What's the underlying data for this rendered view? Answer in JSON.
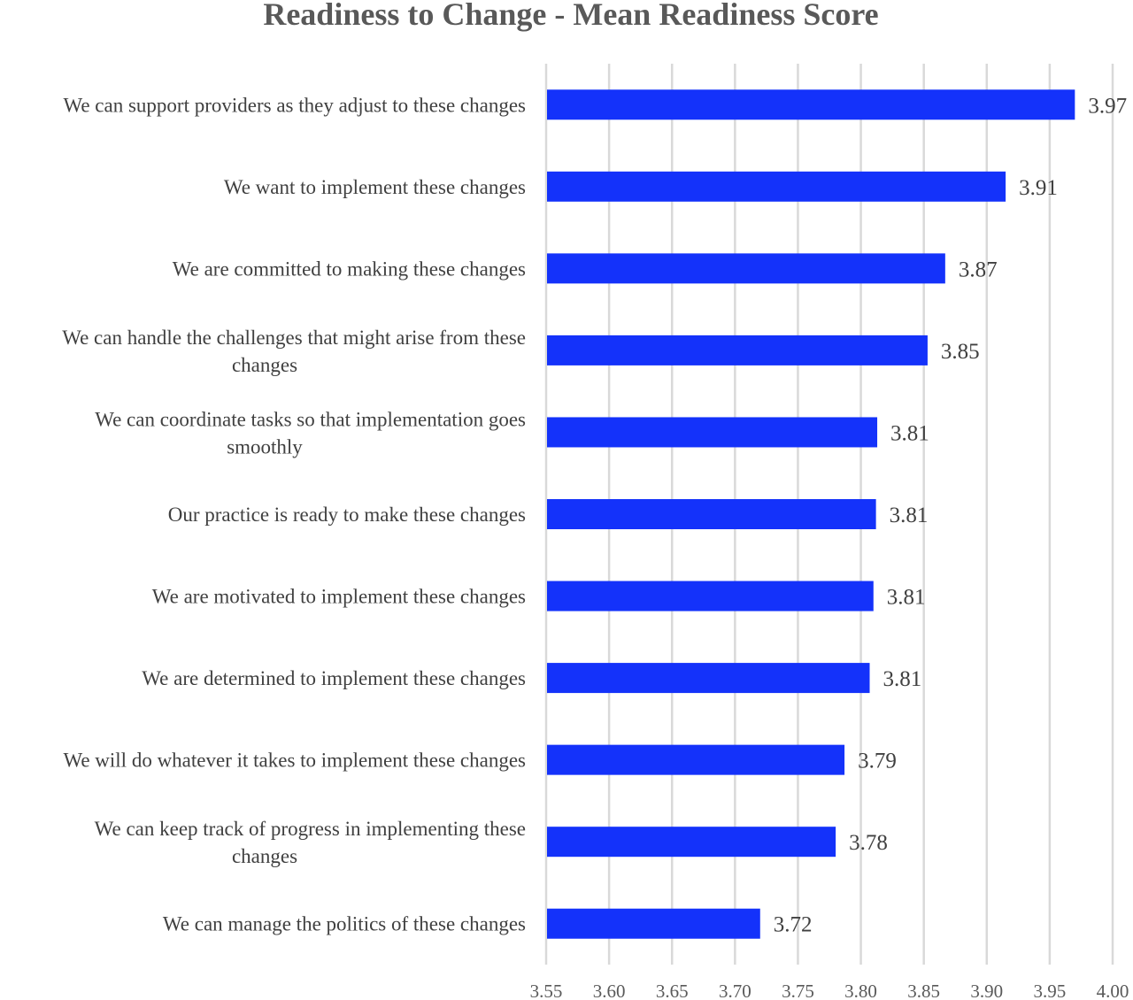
{
  "chart_data": {
    "type": "bar",
    "orientation": "horizontal",
    "title": "Readiness to Change - Mean Readiness Score",
    "xlabel": "",
    "ylabel": "",
    "xlim": [
      3.55,
      4.0
    ],
    "grid": true,
    "bar_color": "#1432FA",
    "categories": [
      [
        "We can support providers as they adjust to these changes"
      ],
      [
        "We want to implement these changes"
      ],
      [
        "We are committed to making these changes"
      ],
      [
        "We can handle the challenges that might arise from these",
        "changes"
      ],
      [
        "We can coordinate tasks so that implementation goes",
        "smoothly"
      ],
      [
        "Our practice is ready to make these changes"
      ],
      [
        "We are motivated to implement these changes"
      ],
      [
        "We are determined to implement these changes"
      ],
      [
        "We will do whatever it takes to implement these changes"
      ],
      [
        "We can keep track of progress in implementing these",
        "changes"
      ],
      [
        "We can manage the politics of these changes"
      ]
    ],
    "values": [
      3.97,
      3.915,
      3.867,
      3.853,
      3.813,
      3.812,
      3.81,
      3.807,
      3.787,
      3.78,
      3.72
    ],
    "data_labels": [
      "3.97",
      "3.91",
      "3.87",
      "3.85",
      "3.81",
      "3.81",
      "3.81",
      "3.81",
      "3.79",
      "3.78",
      "3.72"
    ],
    "ticks": [
      3.55,
      3.6,
      3.65,
      3.7,
      3.75,
      3.8,
      3.85,
      3.9,
      3.95,
      4.0
    ],
    "tick_labels": [
      "3.55",
      "3.60",
      "3.65",
      "3.70",
      "3.75",
      "3.80",
      "3.85",
      "3.90",
      "3.95",
      "4.00"
    ]
  }
}
